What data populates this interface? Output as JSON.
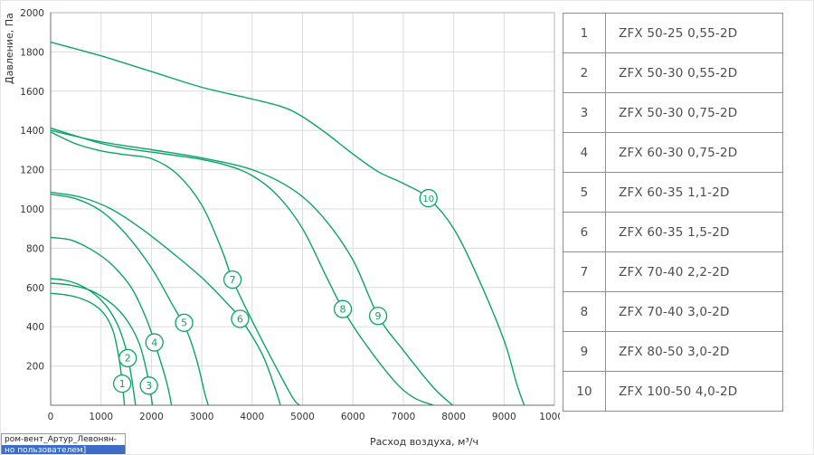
{
  "chart_data": {
    "type": "line",
    "title": "",
    "xlabel": "Расход воздуха, м³/ч",
    "ylabel": "Давление, Па",
    "xlim": [
      0,
      10000
    ],
    "ylim": [
      0,
      2000
    ],
    "x_ticks": [
      0,
      1000,
      2000,
      3000,
      4000,
      5000,
      6000,
      7000,
      8000,
      9000,
      10000
    ],
    "y_ticks": [
      200,
      400,
      600,
      800,
      1000,
      1200,
      1400,
      1600,
      1800,
      2000
    ],
    "grid": true,
    "legend_position": "none",
    "line_color": "#0aa465",
    "series": [
      {
        "name": "1",
        "model": "ZFX 50-25 0,55-2D",
        "label_at": [
          1420,
          110
        ],
        "points": [
          [
            0,
            570
          ],
          [
            300,
            562
          ],
          [
            600,
            544
          ],
          [
            900,
            505
          ],
          [
            1100,
            452
          ],
          [
            1250,
            370
          ],
          [
            1350,
            250
          ],
          [
            1420,
            120
          ],
          [
            1465,
            0
          ]
        ]
      },
      {
        "name": "2",
        "model": "ZFX 50-30 0,55-2D",
        "label_at": [
          1530,
          240
        ],
        "points": [
          [
            0,
            645
          ],
          [
            300,
            636
          ],
          [
            600,
            610
          ],
          [
            900,
            560
          ],
          [
            1150,
            490
          ],
          [
            1350,
            398
          ],
          [
            1500,
            280
          ],
          [
            1600,
            150
          ],
          [
            1685,
            0
          ]
        ]
      },
      {
        "name": "3",
        "model": "ZFX 50-30 0,75-2D",
        "label_at": [
          1950,
          100
        ],
        "points": [
          [
            0,
            622
          ],
          [
            400,
            612
          ],
          [
            800,
            584
          ],
          [
            1200,
            520
          ],
          [
            1500,
            438
          ],
          [
            1750,
            320
          ],
          [
            1900,
            180
          ],
          [
            1990,
            55
          ],
          [
            2020,
            0
          ]
        ]
      },
      {
        "name": "4",
        "model": "ZFX 60-30 0,75-2D",
        "label_at": [
          2060,
          320
        ],
        "points": [
          [
            0,
            855
          ],
          [
            400,
            842
          ],
          [
            800,
            794
          ],
          [
            1200,
            720
          ],
          [
            1600,
            600
          ],
          [
            1900,
            440
          ],
          [
            2100,
            290
          ],
          [
            2300,
            120
          ],
          [
            2400,
            0
          ]
        ]
      },
      {
        "name": "5",
        "model": "ZFX 60-35 1,1-2D",
        "label_at": [
          2650,
          420
        ],
        "points": [
          [
            0,
            1075
          ],
          [
            500,
            1052
          ],
          [
            1000,
            990
          ],
          [
            1500,
            870
          ],
          [
            2000,
            700
          ],
          [
            2400,
            520
          ],
          [
            2700,
            380
          ],
          [
            2900,
            230
          ],
          [
            3060,
            60
          ],
          [
            3130,
            0
          ]
        ]
      },
      {
        "name": "6",
        "model": "ZFX 60-35 1,5-2D",
        "label_at": [
          3760,
          440
        ],
        "points": [
          [
            0,
            1085
          ],
          [
            600,
            1060
          ],
          [
            1200,
            1000
          ],
          [
            1800,
            900
          ],
          [
            2400,
            780
          ],
          [
            3000,
            650
          ],
          [
            3500,
            520
          ],
          [
            3800,
            430
          ],
          [
            4200,
            260
          ],
          [
            4450,
            90
          ],
          [
            4560,
            0
          ]
        ]
      },
      {
        "name": "7",
        "model": "ZFX 70-40 2,2-2D",
        "label_at": [
          3610,
          640
        ],
        "points": [
          [
            0,
            1392
          ],
          [
            500,
            1332
          ],
          [
            1000,
            1296
          ],
          [
            1500,
            1276
          ],
          [
            2000,
            1256
          ],
          [
            2500,
            1180
          ],
          [
            3000,
            1020
          ],
          [
            3400,
            790
          ],
          [
            3610,
            640
          ],
          [
            4000,
            430
          ],
          [
            4400,
            230
          ],
          [
            4800,
            40
          ],
          [
            4940,
            0
          ]
        ]
      },
      {
        "name": "8",
        "model": "ZFX 70-40 3,0-2D",
        "label_at": [
          5800,
          490
        ],
        "points": [
          [
            0,
            1412
          ],
          [
            500,
            1372
          ],
          [
            1000,
            1334
          ],
          [
            1500,
            1308
          ],
          [
            2000,
            1290
          ],
          [
            2500,
            1272
          ],
          [
            3000,
            1252
          ],
          [
            3500,
            1222
          ],
          [
            4000,
            1170
          ],
          [
            4500,
            1070
          ],
          [
            5000,
            900
          ],
          [
            5500,
            640
          ],
          [
            5800,
            490
          ],
          [
            6200,
            330
          ],
          [
            6800,
            130
          ],
          [
            7200,
            40
          ],
          [
            7600,
            0
          ]
        ]
      },
      {
        "name": "9",
        "model": "ZFX 80-50 3,0-2D",
        "label_at": [
          6500,
          455
        ],
        "points": [
          [
            0,
            1400
          ],
          [
            1000,
            1342
          ],
          [
            2000,
            1302
          ],
          [
            3000,
            1260
          ],
          [
            4000,
            1200
          ],
          [
            4800,
            1100
          ],
          [
            5400,
            960
          ],
          [
            6000,
            740
          ],
          [
            6500,
            455
          ],
          [
            7000,
            280
          ],
          [
            7600,
            90
          ],
          [
            7980,
            0
          ]
        ]
      },
      {
        "name": "10",
        "model": "ZFX 100-50 4,0-2D",
        "label_at": [
          7500,
          1055
        ],
        "points": [
          [
            0,
            1850
          ],
          [
            1000,
            1780
          ],
          [
            2000,
            1700
          ],
          [
            3000,
            1620
          ],
          [
            4000,
            1560
          ],
          [
            4600,
            1520
          ],
          [
            5000,
            1470
          ],
          [
            5500,
            1380
          ],
          [
            6000,
            1280
          ],
          [
            6500,
            1190
          ],
          [
            7000,
            1130
          ],
          [
            7500,
            1055
          ],
          [
            8000,
            900
          ],
          [
            8500,
            640
          ],
          [
            9000,
            330
          ],
          [
            9250,
            110
          ],
          [
            9400,
            0
          ]
        ]
      }
    ]
  },
  "table": {
    "rows": [
      {
        "num": "1",
        "model": "ZFX 50-25 0,55-2D"
      },
      {
        "num": "2",
        "model": "ZFX 50-30 0,55-2D"
      },
      {
        "num": "3",
        "model": "ZFX 50-30 0,75-2D"
      },
      {
        "num": "4",
        "model": "ZFX 60-30 0,75-2D"
      },
      {
        "num": "5",
        "model": "ZFX 60-35 1,1-2D"
      },
      {
        "num": "6",
        "model": "ZFX 60-35 1,5-2D"
      },
      {
        "num": "7",
        "model": "ZFX 70-40 2,2-2D"
      },
      {
        "num": "8",
        "model": "ZFX 70-40 3,0-2D"
      },
      {
        "num": "9",
        "model": "ZFX 80-50 3,0-2D"
      },
      {
        "num": "10",
        "model": "ZFX 100-50 4,0-2D"
      }
    ]
  },
  "tooltip": {
    "line1": "ром-вент_Артур_Левонян-",
    "line2": "но пользователем]"
  }
}
